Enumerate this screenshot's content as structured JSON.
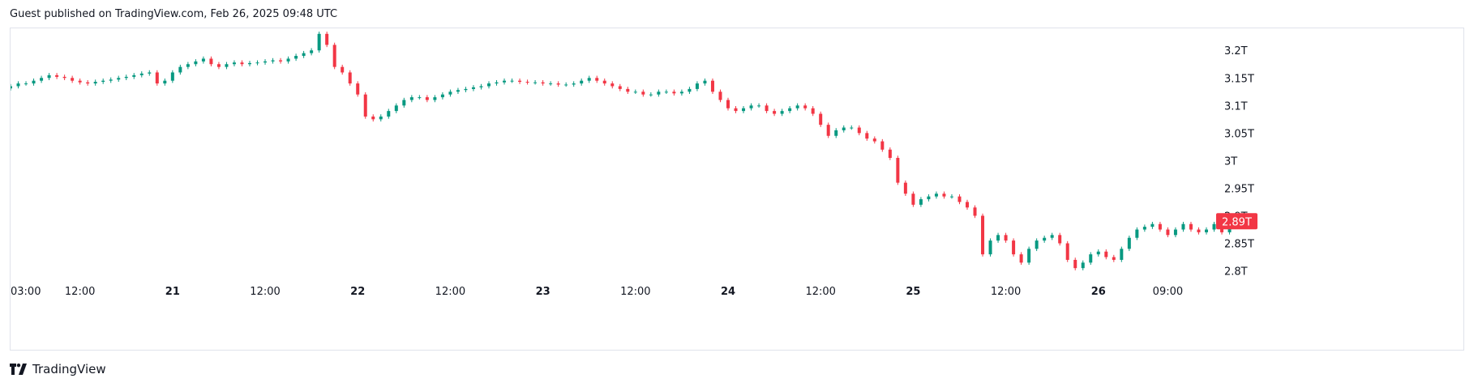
{
  "header": {
    "text": "Guest published on TradingView.com, Feb 26, 2025 09:48 UTC"
  },
  "footer": {
    "brand": "TradingView",
    "logo_icon": "tradingview-logo-icon"
  },
  "colors": {
    "up": "#089981",
    "down": "#f23645",
    "grid": "#e0e3eb",
    "text": "#131722"
  },
  "chart_data": {
    "type": "candlestick",
    "ylim": [
      2.77,
      3.24
    ],
    "y_ticks": [
      {
        "value": 3.2,
        "label": "3.2T"
      },
      {
        "value": 3.15,
        "label": "3.15T"
      },
      {
        "value": 3.1,
        "label": "3.1T"
      },
      {
        "value": 3.05,
        "label": "3.05T"
      },
      {
        "value": 3.0,
        "label": "3T"
      },
      {
        "value": 2.95,
        "label": "2.95T"
      },
      {
        "value": 2.9,
        "label": "2.9T"
      },
      {
        "value": 2.85,
        "label": "2.85T"
      },
      {
        "value": 2.8,
        "label": "2.8T"
      }
    ],
    "x_ticks": [
      {
        "label": "03:00",
        "bold": false,
        "pos": 0
      },
      {
        "label": "12:00",
        "bold": false,
        "pos": 9
      },
      {
        "label": "21",
        "bold": true,
        "pos": 21
      },
      {
        "label": "12:00",
        "bold": false,
        "pos": 33
      },
      {
        "label": "22",
        "bold": true,
        "pos": 45
      },
      {
        "label": "12:00",
        "bold": false,
        "pos": 57
      },
      {
        "label": "23",
        "bold": true,
        "pos": 69
      },
      {
        "label": "12:00",
        "bold": false,
        "pos": 81
      },
      {
        "label": "24",
        "bold": true,
        "pos": 93
      },
      {
        "label": "12:00",
        "bold": false,
        "pos": 105
      },
      {
        "label": "25",
        "bold": true,
        "pos": 117
      },
      {
        "label": "12:00",
        "bold": false,
        "pos": 129
      },
      {
        "label": "26",
        "bold": true,
        "pos": 141
      },
      {
        "label": "09:00",
        "bold": false,
        "pos": 150
      }
    ],
    "x_range": [
      0,
      155
    ],
    "last_value": 2.89,
    "last_label": "2.89T",
    "close": [
      3.135,
      3.14,
      3.14,
      3.145,
      3.15,
      3.155,
      3.152,
      3.15,
      3.145,
      3.142,
      3.14,
      3.143,
      3.145,
      3.147,
      3.15,
      3.152,
      3.155,
      3.158,
      3.16,
      3.14,
      3.145,
      3.16,
      3.17,
      3.175,
      3.18,
      3.185,
      3.175,
      3.17,
      3.175,
      3.178,
      3.175,
      3.177,
      3.178,
      3.18,
      3.182,
      3.18,
      3.185,
      3.19,
      3.195,
      3.2,
      3.23,
      3.21,
      3.17,
      3.16,
      3.14,
      3.12,
      3.08,
      3.075,
      3.08,
      3.09,
      3.1,
      3.11,
      3.115,
      3.115,
      3.11,
      3.115,
      3.12,
      3.125,
      3.128,
      3.13,
      3.133,
      3.135,
      3.14,
      3.142,
      3.145,
      3.145,
      3.143,
      3.142,
      3.142,
      3.14,
      3.14,
      3.138,
      3.138,
      3.14,
      3.145,
      3.15,
      3.145,
      3.14,
      3.135,
      3.13,
      3.125,
      3.125,
      3.12,
      3.12,
      3.125,
      3.125,
      3.122,
      3.125,
      3.13,
      3.14,
      3.145,
      3.125,
      3.11,
      3.095,
      3.09,
      3.095,
      3.1,
      3.1,
      3.09,
      3.085,
      3.09,
      3.095,
      3.1,
      3.095,
      3.085,
      3.065,
      3.045,
      3.055,
      3.06,
      3.06,
      3.05,
      3.04,
      3.035,
      3.02,
      3.005,
      2.96,
      2.94,
      2.92,
      2.93,
      2.935,
      2.94,
      2.935,
      2.935,
      2.925,
      2.915,
      2.9,
      2.83,
      2.855,
      2.865,
      2.855,
      2.83,
      2.815,
      2.84,
      2.855,
      2.86,
      2.865,
      2.85,
      2.82,
      2.805,
      2.815,
      2.83,
      2.835,
      2.825,
      2.82,
      2.84,
      2.86,
      2.875,
      2.88,
      2.885,
      2.875,
      2.865,
      2.875,
      2.885,
      2.875,
      2.87,
      2.875,
      2.885,
      2.87,
      2.89
    ]
  }
}
